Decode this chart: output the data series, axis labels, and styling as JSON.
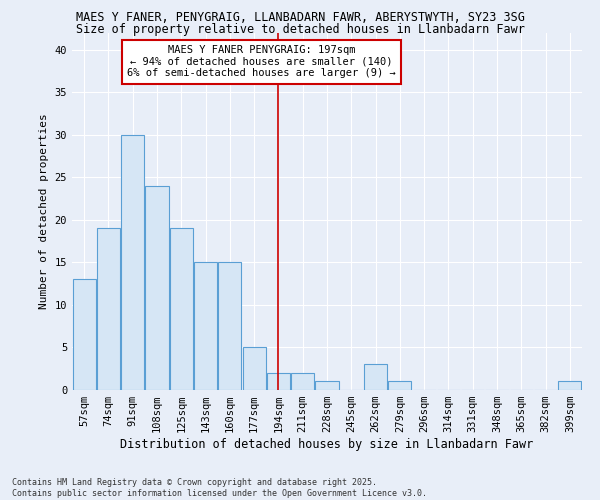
{
  "title1": "MAES Y FANER, PENYGRAIG, LLANBADARN FAWR, ABERYSTWYTH, SY23 3SG",
  "title2": "Size of property relative to detached houses in Llanbadarn Fawr",
  "xlabel": "Distribution of detached houses by size in Llanbadarn Fawr",
  "ylabel": "Number of detached properties",
  "categories": [
    "57sqm",
    "74sqm",
    "91sqm",
    "108sqm",
    "125sqm",
    "143sqm",
    "160sqm",
    "177sqm",
    "194sqm",
    "211sqm",
    "228sqm",
    "245sqm",
    "262sqm",
    "279sqm",
    "296sqm",
    "314sqm",
    "331sqm",
    "348sqm",
    "365sqm",
    "382sqm",
    "399sqm"
  ],
  "values": [
    13,
    19,
    30,
    24,
    19,
    15,
    15,
    5,
    2,
    2,
    1,
    0,
    3,
    1,
    0,
    0,
    0,
    0,
    0,
    0,
    1
  ],
  "bar_color": "#d6e6f5",
  "bar_edge_color": "#5a9fd4",
  "vline_x_index": 8,
  "vline_color": "#cc0000",
  "annotation_title": "MAES Y FANER PENYGRAIG: 197sqm",
  "annotation_line2": "← 94% of detached houses are smaller (140)",
  "annotation_line3": "6% of semi-detached houses are larger (9) →",
  "annotation_box_edge": "#cc0000",
  "annotation_box_bg": "#ffffff",
  "ylim": [
    0,
    42
  ],
  "yticks": [
    0,
    5,
    10,
    15,
    20,
    25,
    30,
    35,
    40
  ],
  "background_color": "#e8eef8",
  "plot_bg_color": "#e8eef8",
  "grid_color": "#ffffff",
  "footnote": "Contains HM Land Registry data © Crown copyright and database right 2025.\nContains public sector information licensed under the Open Government Licence v3.0.",
  "title1_fontsize": 8.5,
  "title2_fontsize": 8.5,
  "xlabel_fontsize": 8.5,
  "ylabel_fontsize": 8.0,
  "tick_fontsize": 7.5,
  "annot_fontsize": 7.5,
  "footnote_fontsize": 6.0
}
